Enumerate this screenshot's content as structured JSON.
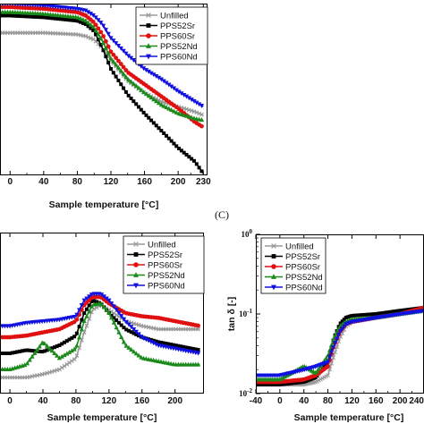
{
  "chart_data": [
    {
      "type": "line",
      "panel": "top",
      "xlabel": "Sample temperature [°C]",
      "ylabel": "",
      "xlim": [
        -12,
        235
      ],
      "ylim": [
        0,
        1
      ],
      "xticks": [
        0,
        40,
        80,
        120,
        160,
        200,
        230
      ],
      "grid": false,
      "legend_position": "top-right",
      "legend": [
        "Unfilled",
        "PPS52Sr",
        "PPS60Sr",
        "PPS52Nd",
        "PPS60Nd"
      ],
      "series": [
        {
          "name": "Unfilled",
          "color": "#9a9a9a",
          "marker": "x",
          "x": [
            -12,
            0,
            40,
            80,
            90,
            100,
            110,
            120,
            140,
            160,
            180,
            200,
            220,
            230
          ],
          "y": [
            0.83,
            0.83,
            0.83,
            0.82,
            0.81,
            0.79,
            0.74,
            0.67,
            0.55,
            0.48,
            0.43,
            0.4,
            0.37,
            0.35
          ]
        },
        {
          "name": "PPS52Sr",
          "color": "#000000",
          "marker": "square",
          "x": [
            -12,
            0,
            40,
            80,
            90,
            100,
            110,
            120,
            140,
            160,
            180,
            200,
            220,
            230
          ],
          "y": [
            0.93,
            0.93,
            0.92,
            0.9,
            0.88,
            0.84,
            0.74,
            0.62,
            0.47,
            0.36,
            0.26,
            0.16,
            0.08,
            0.01
          ]
        },
        {
          "name": "PPS60Sr",
          "color": "#e01010",
          "marker": "circle",
          "x": [
            -12,
            0,
            40,
            80,
            90,
            100,
            110,
            120,
            140,
            160,
            180,
            200,
            220,
            230
          ],
          "y": [
            0.98,
            0.98,
            0.97,
            0.95,
            0.93,
            0.89,
            0.82,
            0.72,
            0.6,
            0.53,
            0.46,
            0.39,
            0.31,
            0.28
          ]
        },
        {
          "name": "PPS52Nd",
          "color": "#1a8a1a",
          "marker": "triangle-up",
          "x": [
            -12,
            0,
            40,
            80,
            90,
            100,
            110,
            120,
            140,
            160,
            180,
            200,
            220,
            230
          ],
          "y": [
            0.95,
            0.95,
            0.94,
            0.92,
            0.9,
            0.86,
            0.78,
            0.68,
            0.56,
            0.48,
            0.41,
            0.36,
            0.33,
            0.32
          ]
        },
        {
          "name": "PPS60Nd",
          "color": "#1010e0",
          "marker": "triangle-down",
          "x": [
            -12,
            0,
            40,
            80,
            90,
            100,
            110,
            120,
            140,
            160,
            180,
            200,
            220,
            230
          ],
          "y": [
            1.0,
            1.0,
            0.99,
            0.97,
            0.96,
            0.93,
            0.88,
            0.8,
            0.7,
            0.62,
            0.56,
            0.49,
            0.43,
            0.4
          ]
        }
      ]
    },
    {
      "type": "line",
      "panel": "bottom-left",
      "xlabel": "Sample temperature [°C]",
      "ylabel": "",
      "xlim": [
        -12,
        235
      ],
      "ylim": [
        0,
        1
      ],
      "xticks": [
        0,
        40,
        80,
        120,
        160,
        200
      ],
      "grid": false,
      "legend_position": "top-right",
      "legend": [
        "Unfilled",
        "PPS52Sr",
        "PPS60Sr",
        "PPS52Nd",
        "PPS60Nd"
      ],
      "series": [
        {
          "name": "Unfilled",
          "color": "#9a9a9a",
          "marker": "x",
          "x": [
            -12,
            0,
            20,
            40,
            60,
            80,
            90,
            100,
            110,
            120,
            140,
            160,
            180,
            200,
            220,
            230
          ],
          "y": [
            0.1,
            0.1,
            0.1,
            0.12,
            0.15,
            0.22,
            0.38,
            0.52,
            0.55,
            0.52,
            0.45,
            0.42,
            0.4,
            0.4,
            0.4,
            0.4
          ]
        },
        {
          "name": "PPS52Sr",
          "color": "#000000",
          "marker": "square",
          "x": [
            -12,
            0,
            20,
            40,
            60,
            80,
            90,
            100,
            110,
            120,
            140,
            160,
            180,
            200,
            220,
            230
          ],
          "y": [
            0.25,
            0.25,
            0.27,
            0.26,
            0.3,
            0.36,
            0.5,
            0.58,
            0.56,
            0.5,
            0.4,
            0.35,
            0.32,
            0.3,
            0.28,
            0.27
          ]
        },
        {
          "name": "PPS60Sr",
          "color": "#e01010",
          "marker": "circle",
          "x": [
            -12,
            0,
            20,
            40,
            60,
            80,
            90,
            100,
            110,
            120,
            140,
            160,
            180,
            200,
            220,
            230
          ],
          "y": [
            0.35,
            0.35,
            0.36,
            0.38,
            0.4,
            0.45,
            0.55,
            0.6,
            0.6,
            0.56,
            0.5,
            0.48,
            0.47,
            0.45,
            0.43,
            0.42
          ]
        },
        {
          "name": "PPS52Nd",
          "color": "#1a8a1a",
          "marker": "triangle-up",
          "x": [
            -12,
            0,
            20,
            40,
            60,
            80,
            90,
            100,
            110,
            120,
            140,
            160,
            180,
            200,
            220,
            230
          ],
          "y": [
            0.15,
            0.15,
            0.18,
            0.32,
            0.22,
            0.28,
            0.45,
            0.55,
            0.56,
            0.5,
            0.3,
            0.22,
            0.2,
            0.18,
            0.18,
            0.18
          ]
        },
        {
          "name": "PPS60Nd",
          "color": "#1010e0",
          "marker": "triangle-down",
          "x": [
            -12,
            0,
            20,
            40,
            60,
            80,
            90,
            100,
            110,
            120,
            140,
            160,
            180,
            200,
            220,
            230
          ],
          "y": [
            0.42,
            0.42,
            0.44,
            0.45,
            0.46,
            0.48,
            0.58,
            0.62,
            0.62,
            0.58,
            0.45,
            0.35,
            0.3,
            0.28,
            0.26,
            0.25
          ]
        }
      ]
    },
    {
      "type": "line",
      "panel": "bottom-right",
      "label": "(C)",
      "xlabel": "Sample temperature [°C]",
      "ylabel": "tan δ [-]",
      "yscale": "log",
      "xlim": [
        -40,
        240
      ],
      "ylim": [
        0.01,
        1
      ],
      "xticks": [
        -40,
        0,
        40,
        80,
        120,
        160,
        200,
        240
      ],
      "yticks": [
        0.01,
        0.1,
        1
      ],
      "grid": false,
      "legend_position": "top-left",
      "legend": [
        "Unfilled",
        "PPS52Sr",
        "PPS60Sr",
        "PPS52Nd",
        "PPS60Nd"
      ],
      "series": [
        {
          "name": "Unfilled",
          "color": "#9a9a9a",
          "marker": "x",
          "x": [
            -40,
            0,
            40,
            60,
            80,
            90,
            100,
            110,
            120,
            160,
            200,
            240
          ],
          "y": [
            0.013,
            0.013,
            0.013,
            0.014,
            0.017,
            0.03,
            0.05,
            0.07,
            0.08,
            0.09,
            0.1,
            0.11
          ]
        },
        {
          "name": "PPS52Sr",
          "color": "#000000",
          "marker": "square",
          "x": [
            -40,
            0,
            40,
            60,
            80,
            90,
            100,
            110,
            120,
            160,
            200,
            240
          ],
          "y": [
            0.013,
            0.013,
            0.014,
            0.016,
            0.025,
            0.05,
            0.075,
            0.09,
            0.095,
            0.1,
            0.11,
            0.12
          ]
        },
        {
          "name": "PPS60Sr",
          "color": "#e01010",
          "marker": "circle",
          "x": [
            -40,
            0,
            40,
            60,
            80,
            90,
            100,
            110,
            120,
            160,
            200,
            240
          ],
          "y": [
            0.014,
            0.014,
            0.015,
            0.017,
            0.022,
            0.04,
            0.06,
            0.075,
            0.08,
            0.09,
            0.1,
            0.12
          ]
        },
        {
          "name": "PPS52Nd",
          "color": "#1a8a1a",
          "marker": "triangle-up",
          "x": [
            -40,
            0,
            40,
            60,
            80,
            90,
            100,
            110,
            120,
            160,
            200,
            240
          ],
          "y": [
            0.015,
            0.015,
            0.022,
            0.018,
            0.03,
            0.05,
            0.07,
            0.08,
            0.085,
            0.09,
            0.1,
            0.11
          ]
        },
        {
          "name": "PPS60Nd",
          "color": "#1010e0",
          "marker": "triangle-down",
          "x": [
            -40,
            0,
            40,
            60,
            80,
            90,
            100,
            110,
            120,
            160,
            200,
            240
          ],
          "y": [
            0.017,
            0.017,
            0.02,
            0.022,
            0.025,
            0.04,
            0.06,
            0.075,
            0.08,
            0.09,
            0.1,
            0.11
          ]
        }
      ]
    }
  ]
}
